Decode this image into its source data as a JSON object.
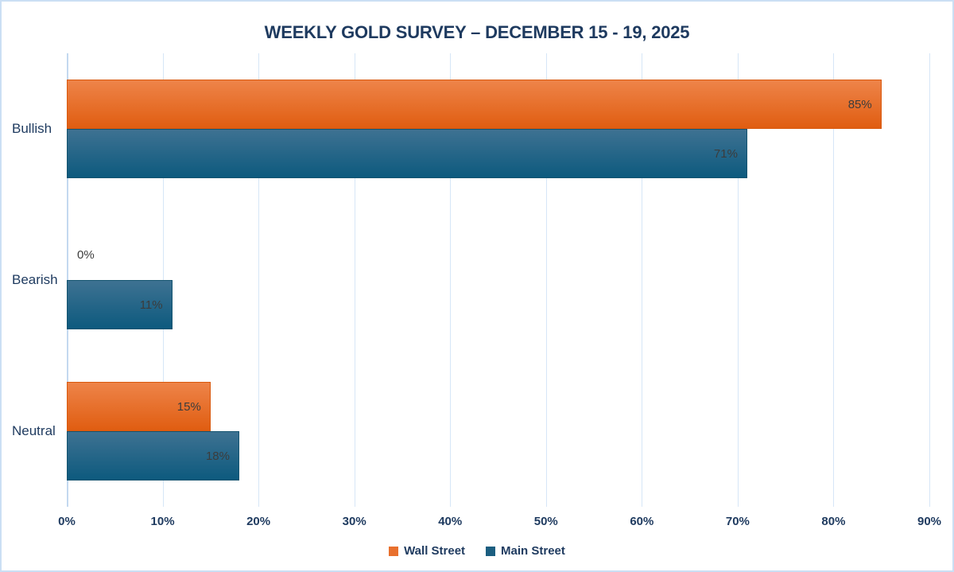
{
  "page": {
    "background": "#ffffff",
    "frame_border_color": "#CBDFF4",
    "gridline_color": "#D6E6F7",
    "axis_line_color": "#C3D9F0",
    "text_color": "#1E3A5F",
    "data_label_color": "#3C3C3C"
  },
  "chart_data": {
    "type": "bar",
    "orientation": "horizontal",
    "title": "WEEKLY GOLD SURVEY – DECEMBER 15 - 19, 2025",
    "categories": [
      "Bullish",
      "Bearish",
      "Neutral"
    ],
    "series": [
      {
        "name": "Wall Street",
        "color": "#E8702E",
        "gradient_top": "#EE8449",
        "gradient_bottom": "#E05D11",
        "border_color": "#D9590E",
        "values": [
          85,
          0,
          15
        ],
        "labels": [
          "85%",
          "0%",
          "15%"
        ]
      },
      {
        "name": "Main Street",
        "color": "#1B5E80",
        "gradient_top": "#3E7292",
        "gradient_bottom": "#0D5A7E",
        "border_color": "#14536F",
        "values": [
          71,
          11,
          18
        ],
        "labels": [
          "71%",
          "11%",
          "18%"
        ]
      }
    ],
    "xlabel": "",
    "ylabel": "",
    "xlim": [
      0,
      90
    ],
    "x_ticks": [
      {
        "value": 0,
        "label": "0%"
      },
      {
        "value": 10,
        "label": "10%"
      },
      {
        "value": 20,
        "label": "20%"
      },
      {
        "value": 30,
        "label": "30%"
      },
      {
        "value": 40,
        "label": "40%"
      },
      {
        "value": 50,
        "label": "50%"
      },
      {
        "value": 60,
        "label": "60%"
      },
      {
        "value": 70,
        "label": "70%"
      },
      {
        "value": 80,
        "label": "80%"
      },
      {
        "value": 90,
        "label": "90%"
      }
    ],
    "grid": true,
    "legend_position": "bottom"
  }
}
